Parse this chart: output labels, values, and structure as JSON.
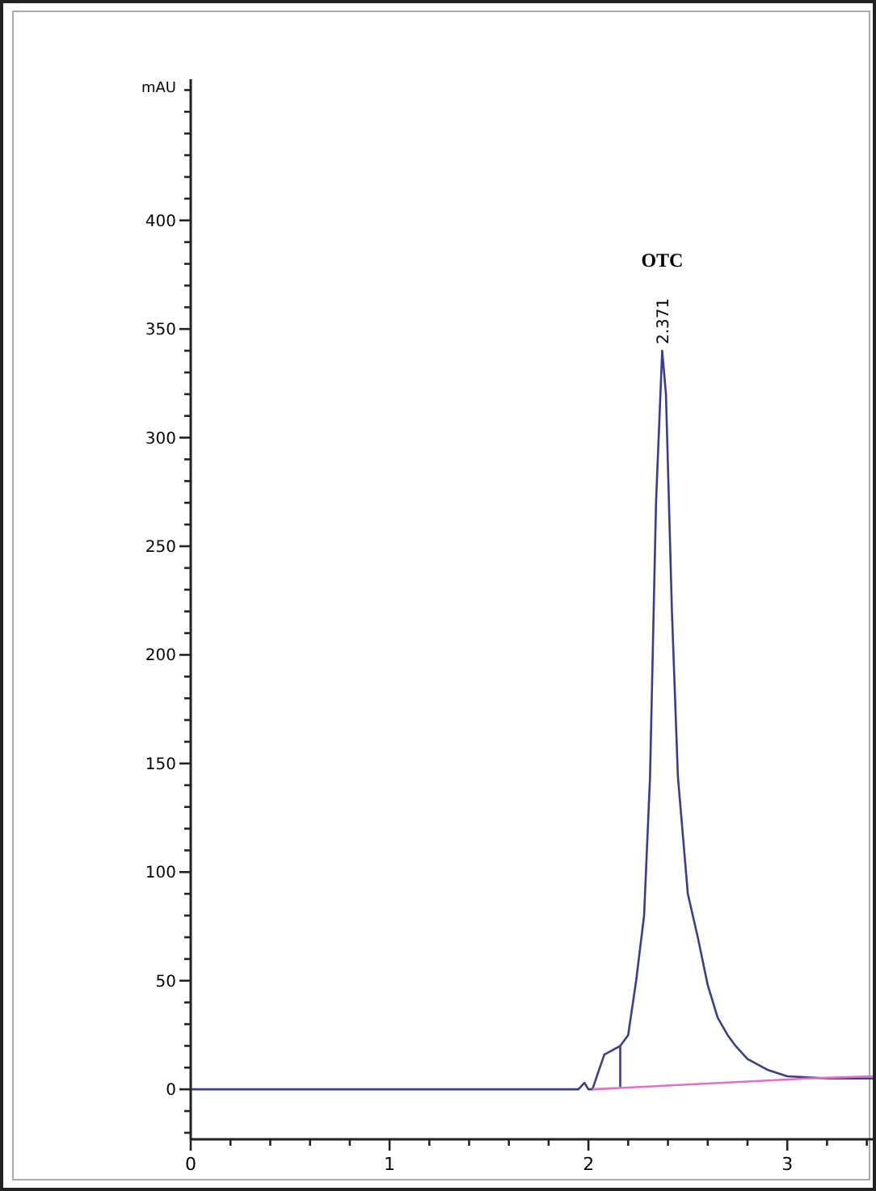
{
  "chart_data": {
    "type": "line",
    "ylabel": "mAU",
    "xlim": [
      0,
      3.43
    ],
    "ylim": [
      -23,
      465
    ],
    "xticks": [
      0,
      {
        "value": 0.2,
        "label": null
      },
      {
        "value": 0.4,
        "label": null
      },
      {
        "value": 0.6,
        "label": null
      },
      {
        "value": 0.8,
        "label": null
      },
      1,
      {
        "value": 1.2,
        "label": null
      },
      {
        "value": 1.4,
        "label": null
      },
      {
        "value": 1.6,
        "label": null
      },
      {
        "value": 1.8,
        "label": null
      },
      2,
      {
        "value": 2.2,
        "label": null
      },
      {
        "value": 2.4,
        "label": null
      },
      {
        "value": 2.6,
        "label": null
      },
      {
        "value": 2.8,
        "label": null
      },
      3,
      {
        "value": 3.2,
        "label": null
      },
      {
        "value": 3.4,
        "label": null
      }
    ],
    "yticks": [
      {
        "value": -20,
        "label": null
      },
      {
        "value": -10,
        "label": null
      },
      0,
      {
        "value": 10,
        "label": null
      },
      {
        "value": 20,
        "label": null
      },
      {
        "value": 30,
        "label": null
      },
      {
        "value": 40,
        "label": null
      },
      50,
      {
        "value": 60,
        "label": null
      },
      {
        "value": 70,
        "label": null
      },
      {
        "value": 80,
        "label": null
      },
      {
        "value": 90,
        "label": null
      },
      100,
      {
        "value": 110,
        "label": null
      },
      {
        "value": 120,
        "label": null
      },
      {
        "value": 130,
        "label": null
      },
      {
        "value": 140,
        "label": null
      },
      150,
      {
        "value": 160,
        "label": null
      },
      {
        "value": 170,
        "label": null
      },
      {
        "value": 180,
        "label": null
      },
      {
        "value": 190,
        "label": null
      },
      200,
      {
        "value": 210,
        "label": null
      },
      {
        "value": 220,
        "label": null
      },
      {
        "value": 230,
        "label": null
      },
      {
        "value": 240,
        "label": null
      },
      250,
      {
        "value": 260,
        "label": null
      },
      {
        "value": 270,
        "label": null
      },
      {
        "value": 280,
        "label": null
      },
      {
        "value": 290,
        "label": null
      },
      300,
      {
        "value": 310,
        "label": null
      },
      {
        "value": 320,
        "label": null
      },
      {
        "value": 330,
        "label": null
      },
      {
        "value": 340,
        "label": null
      },
      350,
      {
        "value": 360,
        "label": null
      },
      {
        "value": 370,
        "label": null
      },
      {
        "value": 380,
        "label": null
      },
      {
        "value": 390,
        "label": null
      },
      400,
      {
        "value": 410,
        "label": null
      },
      {
        "value": 420,
        "label": null
      },
      {
        "value": 430,
        "label": null
      },
      {
        "value": 440,
        "label": null
      },
      {
        "value": 450,
        "label": null
      },
      {
        "value": 460,
        "label": null
      }
    ],
    "series": [
      {
        "color": "#3c3c8e",
        "x": [
          0,
          1.95,
          1.98,
          2.0,
          2.02,
          2.05,
          2.08,
          2.12,
          2.16,
          2.2,
          2.24,
          2.28,
          2.31,
          2.34,
          2.371,
          2.39,
          2.42,
          2.45,
          2.5,
          2.55,
          2.6,
          2.65,
          2.7,
          2.74,
          2.8,
          2.9,
          3.0,
          3.2,
          3.43
        ],
        "values": [
          0,
          0,
          3,
          0,
          0,
          8,
          16,
          18,
          20,
          25,
          50,
          80,
          144,
          270,
          340,
          320,
          220,
          144,
          90,
          70,
          48,
          33,
          25,
          20,
          14,
          9,
          6,
          5,
          5
        ]
      },
      {
        "color": "#3c3c8e",
        "x": [
          2.16,
          2.16
        ],
        "values": [
          1,
          20
        ]
      },
      {
        "color": "#e070c8",
        "x": [
          2.02,
          3.1,
          3.43
        ],
        "values": [
          0,
          5,
          6
        ]
      }
    ],
    "annotations": [
      "OTC",
      {
        "text": "2.371",
        "x": 2.371,
        "y": 340
      }
    ]
  }
}
